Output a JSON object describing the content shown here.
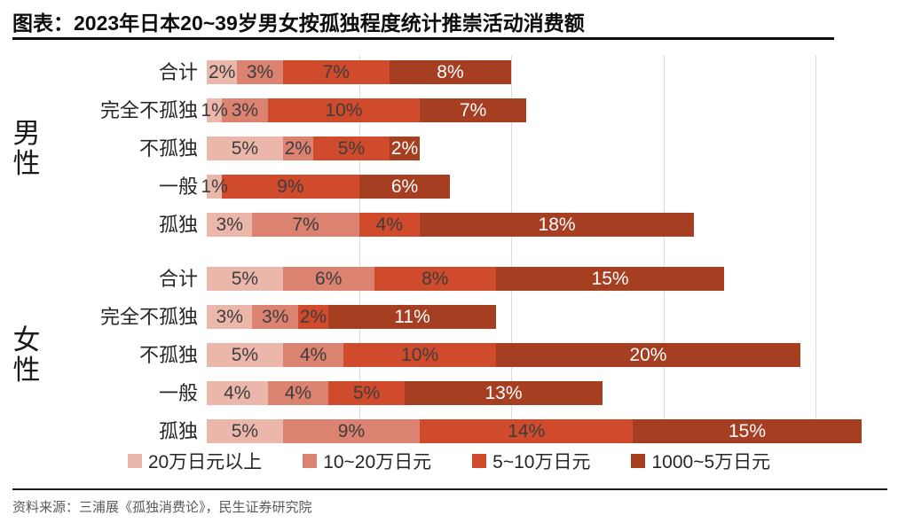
{
  "title": "图表：2023年日本20~39岁男女按孤独程度统计推崇活动消费额",
  "source": "资料来源：三浦展《孤独消费论》，民生证券研究院",
  "chart_data": {
    "type": "bar",
    "orientation": "horizontal-stacked",
    "title": "图表：2023年日本20~39岁男女按孤独程度统计推崇活动消费额",
    "value_suffix": "%",
    "xlim": [
      0,
      45
    ],
    "gridline_step": 10,
    "grid": true,
    "legend_position": "bottom",
    "series": [
      {
        "name": "20万日元以上",
        "color": "#EBB7AA"
      },
      {
        "name": "10~20万日元",
        "color": "#DC8270"
      },
      {
        "name": "5~10万日元",
        "color": "#CF4B2C"
      },
      {
        "name": "1000~5万日元",
        "color": "#A63E22"
      }
    ],
    "groups": [
      {
        "name": "男性",
        "rows": [
          {
            "label": "合计",
            "values": [
              2,
              3,
              7,
              8
            ]
          },
          {
            "label": "完全不孤独",
            "values": [
              1,
              3,
              10,
              7
            ]
          },
          {
            "label": "不孤独",
            "values": [
              5,
              2,
              5,
              2
            ]
          },
          {
            "label": "一般",
            "values": [
              1,
              0,
              9,
              6
            ]
          },
          {
            "label": "孤独",
            "values": [
              3,
              7,
              4,
              18
            ]
          }
        ]
      },
      {
        "name": "女性",
        "rows": [
          {
            "label": "合计",
            "values": [
              5,
              6,
              8,
              15
            ]
          },
          {
            "label": "完全不孤独",
            "values": [
              3,
              3,
              2,
              11
            ]
          },
          {
            "label": "不孤独",
            "values": [
              5,
              4,
              10,
              20
            ]
          },
          {
            "label": "一般",
            "values": [
              4,
              4,
              5,
              13
            ]
          },
          {
            "label": "孤独",
            "values": [
              5,
              9,
              14,
              15
            ]
          }
        ]
      }
    ]
  }
}
